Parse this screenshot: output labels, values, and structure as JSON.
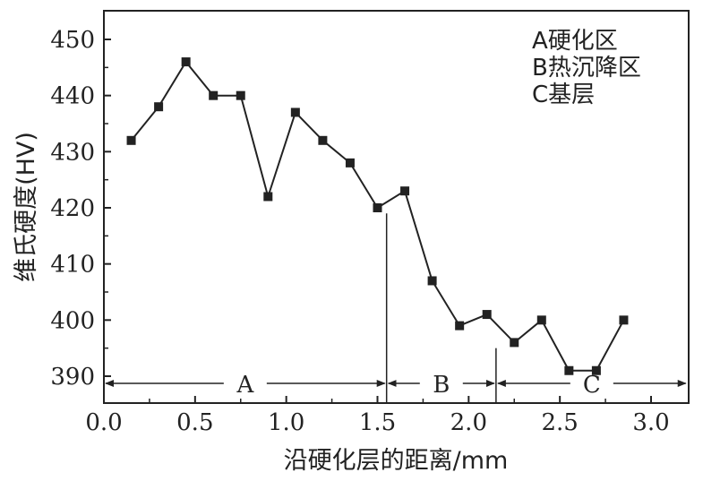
{
  "chart_data": {
    "type": "line",
    "title": "",
    "xlabel": "沿硬化层的距离/mm",
    "ylabel": "维氏硬度(HV)",
    "xlim": [
      0.0,
      3.2
    ],
    "ylim": [
      385,
      456
    ],
    "x_ticks": [
      "0.0",
      "0.5",
      "1.0",
      "1.5",
      "2.0",
      "2.5",
      "3.0"
    ],
    "y_ticks": [
      "390",
      "400",
      "410",
      "420",
      "430",
      "440",
      "450"
    ],
    "grid": false,
    "series": [
      {
        "x": [
          0.15,
          0.3,
          0.45,
          0.6,
          0.75,
          0.9,
          1.05,
          1.2,
          1.35,
          1.5,
          1.65,
          1.8,
          1.95,
          2.1,
          2.25,
          2.4,
          2.55,
          2.7,
          2.85
        ],
        "y": [
          432,
          438,
          446,
          440,
          440,
          422,
          437,
          432,
          428,
          420,
          423,
          407,
          399,
          401,
          396,
          400,
          391,
          391,
          400
        ]
      }
    ],
    "legend": {
      "placement": "top-right",
      "entries": [
        "A硬化区",
        "B热沉降区",
        "C基层"
      ]
    },
    "regions": [
      {
        "label": "A",
        "x_start": 0.0,
        "x_end": 1.55
      },
      {
        "label": "B",
        "x_start": 1.55,
        "x_end": 2.15
      },
      {
        "label": "C",
        "x_start": 2.15,
        "x_end": 3.2
      }
    ],
    "boundaries": [
      {
        "x": 1.55,
        "y_top": 419
      },
      {
        "x": 2.15,
        "y_top": 395
      }
    ]
  }
}
